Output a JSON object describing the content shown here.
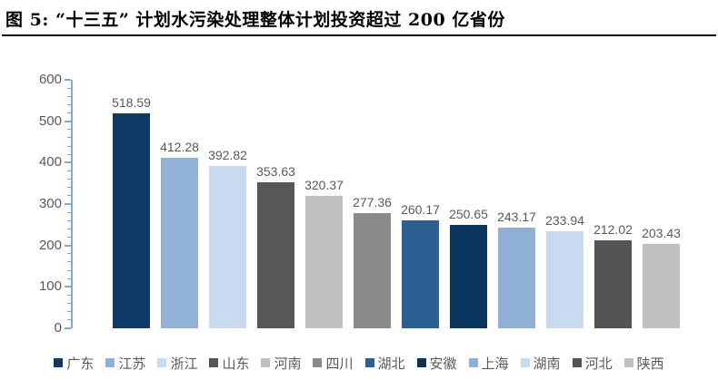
{
  "header": {
    "title": "图 5: “十三五” 计划水污染处理整体计划投资超过 200 亿省份"
  },
  "chart_data": {
    "type": "bar",
    "title": "",
    "xlabel": "",
    "ylabel": "",
    "categories": [
      "广东",
      "江苏",
      "浙江",
      "山东",
      "河南",
      "四川",
      "湖北",
      "安徽",
      "上海",
      "湖南",
      "河北",
      "陕西"
    ],
    "values": [
      518.59,
      412.28,
      392.82,
      353.63,
      320.37,
      277.36,
      260.17,
      250.65,
      243.17,
      233.94,
      212.02,
      203.43
    ],
    "data_labels": [
      "518.59",
      "412.28",
      "392.82",
      "353.63",
      "320.37",
      "277.36",
      "260.17",
      "250.65",
      "243.17",
      "233.94",
      "212.02",
      "203.43"
    ],
    "bar_colors": [
      "#0d3a66",
      "#92b1d6",
      "#c8daf0",
      "#595657",
      "#c0c0c0",
      "#8a8a8a",
      "#2b6093",
      "#08345e",
      "#8fafd4",
      "#c8daf0",
      "#565354",
      "#c0c0c0"
    ],
    "ylim": [
      0,
      600
    ],
    "yticks": [
      "0",
      "100",
      "200",
      "300",
      "400",
      "500",
      "600"
    ],
    "minor_tick_interval": 20,
    "grid": false,
    "legend_position": "bottom",
    "colors": {
      "axis": "#7faadc",
      "tick_label": "#595959",
      "data_label": "#595959",
      "legend_label": "#595959",
      "title_text": "#000000",
      "title_rule": "#000000"
    }
  }
}
